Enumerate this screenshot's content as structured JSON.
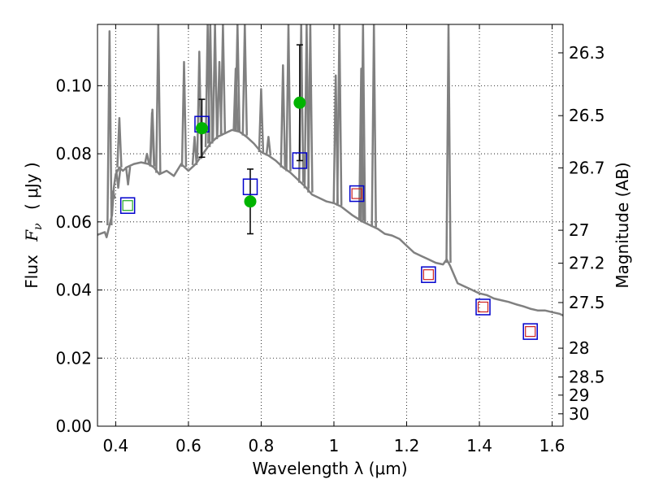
{
  "chart_data": {
    "type": "scatter",
    "xlabel": "Wavelength  λ (μm)",
    "ylabel_left_prefix": "Flux",
    "ylabel_left_symbol": "F",
    "ylabel_left_sub": "ν",
    "ylabel_left_unit": "( μJy )",
    "ylabel_right": "Magnitude (AB)",
    "xlim": [
      0.35,
      1.63
    ],
    "ylim": [
      0.0,
      0.118
    ],
    "grid": true,
    "x_ticks": [
      0.4,
      0.6,
      0.8,
      1.0,
      1.2,
      1.4,
      1.6
    ],
    "x_tick_labels": [
      "0.4",
      "0.6",
      "0.8",
      "1",
      "1.2",
      "1.4",
      "1.6"
    ],
    "y_ticks": [
      0.0,
      0.02,
      0.04,
      0.06,
      0.08,
      0.1
    ],
    "y_tick_labels": [
      "0.00",
      "0.02",
      "0.04",
      "0.06",
      "0.08",
      "0.10"
    ],
    "mag_ticks": [
      {
        "label": "26.3",
        "mag": 26.3
      },
      {
        "label": "26.5",
        "mag": 26.5
      },
      {
        "label": "26.7",
        "mag": 26.7
      },
      {
        "label": "27",
        "mag": 27.0
      },
      {
        "label": "27.2",
        "mag": 27.2
      },
      {
        "label": "27.5",
        "mag": 27.5
      },
      {
        "label": "28",
        "mag": 28.0
      },
      {
        "label": "28.5",
        "mag": 28.5
      },
      {
        "label": "29",
        "mag": 29.0
      },
      {
        "label": "30",
        "mag": 30.0
      }
    ],
    "colors": {
      "model": "#808080",
      "observed": "#00b400",
      "model_box": "#0000cc",
      "inner_red": "#cc2222",
      "inner_green": "#22aa22",
      "errorbar": "#000000"
    },
    "series": [
      {
        "style": "model_spectrum_line",
        "points": [
          [
            0.35,
            0.0562
          ],
          [
            0.37,
            0.057
          ],
          [
            0.375,
            0.0555
          ],
          [
            0.383,
            0.059
          ],
          [
            0.39,
            0.062
          ],
          [
            0.395,
            0.07
          ],
          [
            0.4,
            0.074
          ],
          [
            0.41,
            0.076
          ],
          [
            0.42,
            0.075
          ],
          [
            0.43,
            0.076
          ],
          [
            0.45,
            0.077
          ],
          [
            0.47,
            0.0775
          ],
          [
            0.49,
            0.077
          ],
          [
            0.505,
            0.076
          ],
          [
            0.52,
            0.074
          ],
          [
            0.54,
            0.075
          ],
          [
            0.56,
            0.0735
          ],
          [
            0.58,
            0.077
          ],
          [
            0.6,
            0.075
          ],
          [
            0.62,
            0.077
          ],
          [
            0.64,
            0.08
          ],
          [
            0.66,
            0.083
          ],
          [
            0.68,
            0.085
          ],
          [
            0.7,
            0.086
          ],
          [
            0.72,
            0.087
          ],
          [
            0.74,
            0.0865
          ],
          [
            0.76,
            0.085
          ],
          [
            0.78,
            0.083
          ],
          [
            0.8,
            0.0805
          ],
          [
            0.82,
            0.0795
          ],
          [
            0.84,
            0.078
          ],
          [
            0.86,
            0.076
          ],
          [
            0.88,
            0.0745
          ],
          [
            0.9,
            0.0725
          ],
          [
            0.92,
            0.0705
          ],
          [
            0.94,
            0.068
          ],
          [
            0.96,
            0.067
          ],
          [
            0.98,
            0.066
          ],
          [
            1.0,
            0.0655
          ],
          [
            1.02,
            0.0645
          ],
          [
            1.05,
            0.062
          ],
          [
            1.08,
            0.06
          ],
          [
            1.1,
            0.059
          ],
          [
            1.12,
            0.058
          ],
          [
            1.14,
            0.0565
          ],
          [
            1.16,
            0.056
          ],
          [
            1.18,
            0.055
          ],
          [
            1.2,
            0.053
          ],
          [
            1.22,
            0.051
          ],
          [
            1.24,
            0.05
          ],
          [
            1.26,
            0.049
          ],
          [
            1.28,
            0.048
          ],
          [
            1.3,
            0.0475
          ],
          [
            1.31,
            0.049
          ],
          [
            1.32,
            0.047
          ],
          [
            1.34,
            0.042
          ],
          [
            1.36,
            0.041
          ],
          [
            1.38,
            0.04
          ],
          [
            1.4,
            0.039
          ],
          [
            1.42,
            0.0385
          ],
          [
            1.44,
            0.0375
          ],
          [
            1.46,
            0.037
          ],
          [
            1.48,
            0.0365
          ],
          [
            1.5,
            0.0358
          ],
          [
            1.52,
            0.0352
          ],
          [
            1.54,
            0.0345
          ],
          [
            1.56,
            0.034
          ],
          [
            1.58,
            0.034
          ],
          [
            1.6,
            0.0335
          ],
          [
            1.62,
            0.033
          ],
          [
            1.63,
            0.0325
          ]
        ],
        "emission_lines": [
          [
            0.383,
            0.116
          ],
          [
            0.393,
            0.069
          ],
          [
            0.407,
            0.07
          ],
          [
            0.41,
            0.0905
          ],
          [
            0.434,
            0.071
          ],
          [
            0.486,
            0.08
          ],
          [
            0.5,
            0.092
          ],
          [
            0.501,
            0.093
          ],
          [
            0.517,
            0.118
          ],
          [
            0.588,
            0.107
          ],
          [
            0.617,
            0.085
          ],
          [
            0.63,
            0.11
          ],
          [
            0.653,
            0.118
          ],
          [
            0.66,
            0.118
          ],
          [
            0.673,
            0.118
          ],
          [
            0.685,
            0.107
          ],
          [
            0.695,
            0.118
          ],
          [
            0.73,
            0.105
          ],
          [
            0.735,
            0.118
          ],
          [
            0.755,
            0.118
          ],
          [
            0.8,
            0.099
          ],
          [
            0.82,
            0.085
          ],
          [
            0.86,
            0.106
          ],
          [
            0.875,
            0.118
          ],
          [
            0.91,
            0.118
          ],
          [
            0.925,
            0.118
          ],
          [
            0.935,
            0.118
          ],
          [
            1.005,
            0.103
          ],
          [
            1.015,
            0.118
          ],
          [
            1.075,
            0.105
          ],
          [
            1.08,
            0.118
          ],
          [
            1.11,
            0.118
          ],
          [
            1.315,
            0.118
          ]
        ]
      },
      {
        "style": "model_photometry_box",
        "points": [
          [
            0.433,
            0.0648
          ],
          [
            0.637,
            0.0887
          ],
          [
            0.77,
            0.0703
          ],
          [
            0.906,
            0.078
          ],
          [
            1.063,
            0.0683
          ],
          [
            1.26,
            0.0445
          ],
          [
            1.41,
            0.035
          ],
          [
            1.54,
            0.0278
          ]
        ]
      },
      {
        "style": "red_inner_square",
        "points": [
          [
            1.063,
            0.0683
          ],
          [
            1.26,
            0.0445
          ],
          [
            1.41,
            0.035
          ],
          [
            1.54,
            0.0278
          ]
        ]
      },
      {
        "style": "green_inner_square",
        "points": [
          [
            0.433,
            0.0648
          ]
        ]
      },
      {
        "style": "observed_with_errorbars",
        "points": [
          {
            "x": 0.637,
            "y": 0.0875,
            "yerr": 0.0085
          },
          {
            "x": 0.77,
            "y": 0.066,
            "yerr": 0.0095
          },
          {
            "x": 0.906,
            "y": 0.095,
            "yerr": 0.017
          }
        ]
      }
    ]
  }
}
